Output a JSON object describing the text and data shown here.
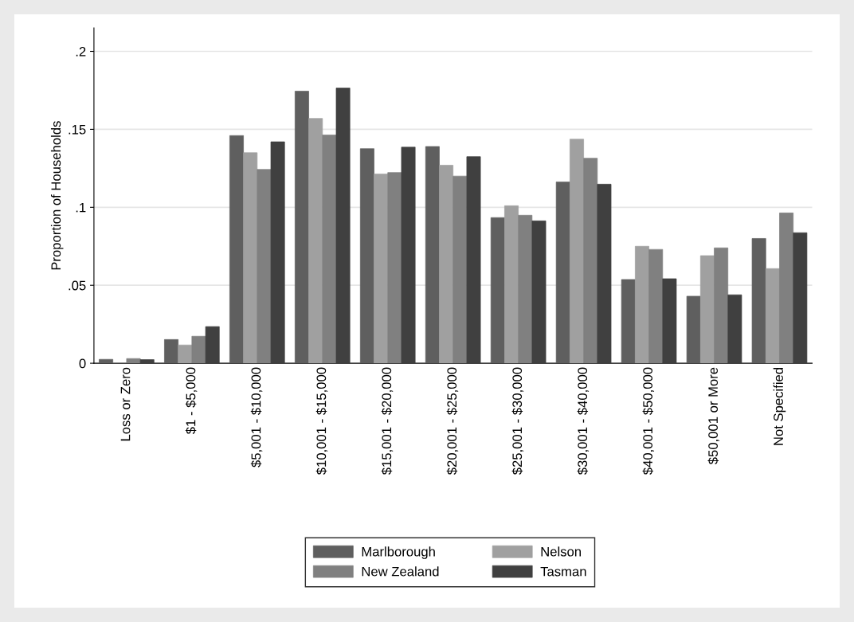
{
  "chart_data": {
    "type": "bar",
    "ylabel": "Proportion of Households",
    "categories": [
      "Loss or Zero",
      "$1 - $5,000",
      "$5,001 - $10,000",
      "$10,001 - $15,000",
      "$15,001 - $20,000",
      "$20,001 - $25,000",
      "$25,001 - $30,000",
      "$30,001 - $40,000",
      "$40,001 - $50,000",
      "$50,001 or More",
      "Not Specified"
    ],
    "series": [
      {
        "name": "Marlborough",
        "color": "#5f5f5f",
        "values": [
          0.0025,
          0.0152,
          0.146,
          0.1745,
          0.1376,
          0.139,
          0.0934,
          0.1163,
          0.0537,
          0.043,
          0.08
        ]
      },
      {
        "name": "Nelson",
        "color": "#a0a0a0",
        "values": [
          0,
          0.0117,
          0.135,
          0.157,
          0.1214,
          0.127,
          0.101,
          0.1437,
          0.075,
          0.069,
          0.0607
        ]
      },
      {
        "name": "New Zealand",
        "color": "#808080",
        "values": [
          0.003,
          0.0173,
          0.1243,
          0.1464,
          0.1223,
          0.12,
          0.0949,
          0.1315,
          0.073,
          0.074,
          0.0964
        ]
      },
      {
        "name": "Tasman",
        "color": "#404040",
        "values": [
          0.0023,
          0.0235,
          0.142,
          0.1765,
          0.1386,
          0.1325,
          0.0913,
          0.1148,
          0.0542,
          0.0439,
          0.0837
        ]
      }
    ],
    "ylim": [
      0,
      0.215
    ],
    "yticks": [
      0,
      {
        "value": 0.05,
        "label": ".05"
      },
      {
        "value": 0.1,
        "label": ".1"
      },
      {
        "value": 0.15,
        "label": ".15"
      },
      {
        "value": 0.2,
        "label": ".2"
      }
    ],
    "grid": "y",
    "legend": "bottom"
  }
}
